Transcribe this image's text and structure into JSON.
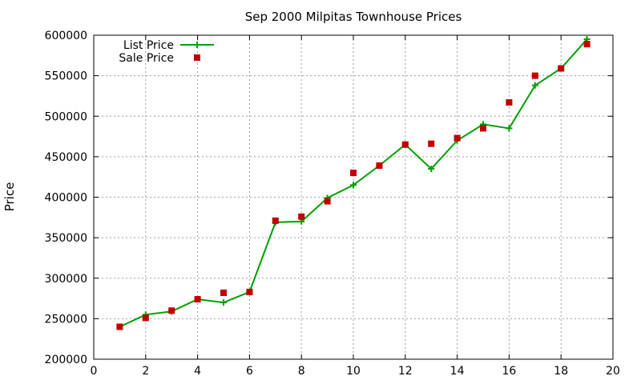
{
  "chart_data": {
    "type": "line",
    "title": "Sep 2000 Milpitas Townhouse Prices",
    "xlabel": "",
    "ylabel": "Price",
    "xlim": [
      0,
      20
    ],
    "ylim": [
      200000,
      600000
    ],
    "xticks": [
      0,
      2,
      4,
      6,
      8,
      10,
      12,
      14,
      16,
      18,
      20
    ],
    "yticks": [
      200000,
      250000,
      300000,
      350000,
      400000,
      450000,
      500000,
      550000,
      600000
    ],
    "grid": true,
    "legend_position": "top-left",
    "series": [
      {
        "name": "List Price",
        "style": "line-with-plus-markers",
        "color": "#00a000",
        "x": [
          1,
          2,
          3,
          4,
          5,
          6,
          7,
          8,
          9,
          10,
          11,
          12,
          13,
          14,
          15,
          16,
          17,
          18,
          19
        ],
        "y": [
          240000,
          255000,
          259000,
          274000,
          270000,
          283000,
          369000,
          370000,
          399000,
          415000,
          439000,
          465000,
          435000,
          470000,
          490000,
          485000,
          538000,
          559000,
          595000
        ]
      },
      {
        "name": "Sale Price",
        "style": "square-markers",
        "color": "#c00000",
        "x": [
          1,
          2,
          3,
          4,
          5,
          6,
          7,
          8,
          9,
          10,
          11,
          12,
          13,
          14,
          15,
          16,
          17,
          18,
          19
        ],
        "y": [
          240000,
          251000,
          260000,
          274000,
          282000,
          283000,
          371000,
          376000,
          395000,
          430000,
          439000,
          465000,
          466000,
          473000,
          485000,
          517000,
          550000,
          559000,
          589000
        ]
      }
    ]
  }
}
